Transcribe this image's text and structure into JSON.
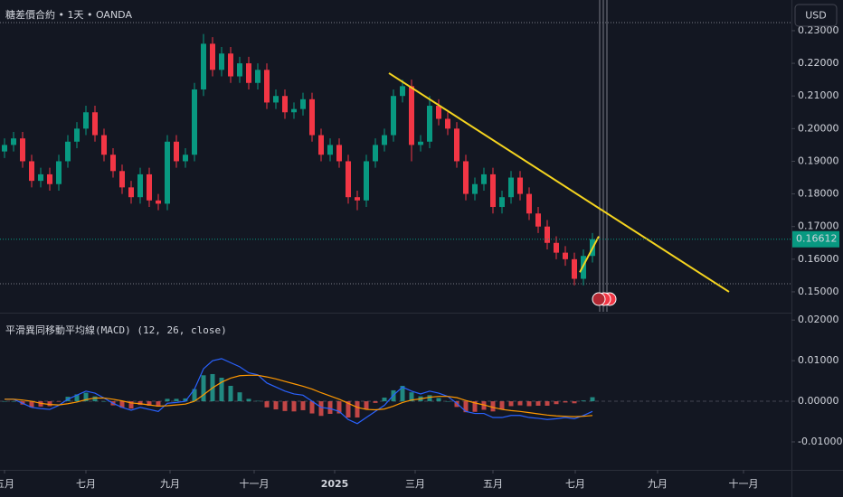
{
  "chart_data": [
    {
      "type": "candlestick",
      "title": "糖差價合約 • 1天 • OANDA",
      "currency": "USD",
      "last_price": 0.16612,
      "x": [
        0,
        1,
        2,
        3,
        4,
        5,
        6,
        7,
        8,
        9,
        10,
        11,
        12,
        13,
        14,
        15,
        16,
        17,
        18,
        19,
        20,
        21,
        22,
        23,
        24,
        25,
        26,
        27,
        28,
        29,
        30,
        31,
        32,
        33,
        34,
        35,
        36,
        37,
        38,
        39,
        40,
        41,
        42,
        43,
        44,
        45,
        46,
        47,
        48,
        49,
        50,
        51,
        52,
        53,
        54,
        55,
        56,
        57,
        58,
        59,
        60,
        61,
        62,
        63,
        64,
        65
      ],
      "open": [
        0.193,
        0.195,
        0.197,
        0.19,
        0.184,
        0.186,
        0.183,
        0.19,
        0.196,
        0.2,
        0.205,
        0.198,
        0.192,
        0.187,
        0.182,
        0.179,
        0.186,
        0.178,
        0.177,
        0.196,
        0.19,
        0.192,
        0.212,
        0.226,
        0.218,
        0.223,
        0.216,
        0.22,
        0.214,
        0.218,
        0.208,
        0.21,
        0.205,
        0.206,
        0.209,
        0.198,
        0.192,
        0.195,
        0.19,
        0.179,
        0.178,
        0.19,
        0.195,
        0.198,
        0.21,
        0.213,
        0.195,
        0.196,
        0.207,
        0.203,
        0.2,
        0.19,
        0.18,
        0.183,
        0.186,
        0.176,
        0.179,
        0.185,
        0.18,
        0.174,
        0.17,
        0.165,
        0.162,
        0.16,
        0.154,
        0.161
      ],
      "high": [
        0.197,
        0.199,
        0.199,
        0.192,
        0.188,
        0.188,
        0.192,
        0.198,
        0.202,
        0.207,
        0.207,
        0.2,
        0.194,
        0.189,
        0.184,
        0.188,
        0.188,
        0.18,
        0.198,
        0.198,
        0.194,
        0.214,
        0.229,
        0.228,
        0.225,
        0.225,
        0.222,
        0.222,
        0.22,
        0.22,
        0.212,
        0.212,
        0.208,
        0.211,
        0.211,
        0.2,
        0.197,
        0.197,
        0.192,
        0.181,
        0.192,
        0.197,
        0.2,
        0.212,
        0.215,
        0.215,
        0.198,
        0.21,
        0.209,
        0.205,
        0.202,
        0.192,
        0.185,
        0.188,
        0.188,
        0.181,
        0.187,
        0.187,
        0.182,
        0.176,
        0.172,
        0.167,
        0.164,
        0.162,
        0.163,
        0.168
      ],
      "low": [
        0.191,
        0.193,
        0.188,
        0.182,
        0.182,
        0.181,
        0.181,
        0.188,
        0.194,
        0.198,
        0.196,
        0.19,
        0.185,
        0.18,
        0.177,
        0.177,
        0.176,
        0.175,
        0.175,
        0.188,
        0.188,
        0.19,
        0.21,
        0.216,
        0.216,
        0.214,
        0.214,
        0.212,
        0.212,
        0.206,
        0.206,
        0.203,
        0.203,
        0.204,
        0.196,
        0.19,
        0.19,
        0.188,
        0.177,
        0.175,
        0.176,
        0.188,
        0.193,
        0.196,
        0.208,
        0.19,
        0.193,
        0.194,
        0.201,
        0.198,
        0.188,
        0.178,
        0.178,
        0.181,
        0.174,
        0.174,
        0.177,
        0.178,
        0.172,
        0.168,
        0.163,
        0.16,
        0.158,
        0.152,
        0.152,
        0.159
      ],
      "close": [
        0.195,
        0.197,
        0.19,
        0.184,
        0.186,
        0.183,
        0.19,
        0.196,
        0.2,
        0.205,
        0.198,
        0.192,
        0.187,
        0.182,
        0.179,
        0.186,
        0.178,
        0.177,
        0.196,
        0.19,
        0.192,
        0.212,
        0.226,
        0.218,
        0.223,
        0.216,
        0.22,
        0.214,
        0.218,
        0.208,
        0.21,
        0.205,
        0.206,
        0.209,
        0.198,
        0.192,
        0.195,
        0.19,
        0.179,
        0.178,
        0.19,
        0.195,
        0.198,
        0.21,
        0.213,
        0.195,
        0.196,
        0.207,
        0.203,
        0.2,
        0.19,
        0.18,
        0.183,
        0.186,
        0.176,
        0.179,
        0.185,
        0.18,
        0.174,
        0.17,
        0.165,
        0.162,
        0.16,
        0.154,
        0.161,
        0.16612
      ],
      "colors": {
        "up": "#089981",
        "down": "#f23645"
      },
      "xlim": [
        -0.5,
        87
      ],
      "xticks": [
        {
          "value": 0,
          "label": "五月"
        },
        {
          "value": 9,
          "label": "七月"
        },
        {
          "value": 18.3,
          "label": "九月"
        },
        {
          "value": 27.6,
          "label": "十一月"
        },
        {
          "value": 36.5,
          "label": "2025"
        },
        {
          "value": 45.4,
          "label": "三月"
        },
        {
          "value": 54,
          "label": "五月"
        },
        {
          "value": 63.1,
          "label": "七月"
        },
        {
          "value": 72.2,
          "label": "九月"
        },
        {
          "value": 81.7,
          "label": "十一月"
        }
      ],
      "ylim": [
        0.1439,
        0.2394
      ],
      "yticks": [
        {
          "value": 0.15,
          "label": "0.15000"
        },
        {
          "value": 0.16,
          "label": "0.16000"
        },
        {
          "value": 0.17,
          "label": "0.17000"
        },
        {
          "value": 0.18,
          "label": "0.18000"
        },
        {
          "value": 0.19,
          "label": "0.19000"
        },
        {
          "value": 0.2,
          "label": "0.20000"
        },
        {
          "value": 0.21,
          "label": "0.21000"
        },
        {
          "value": 0.22,
          "label": "0.22000"
        },
        {
          "value": 0.23,
          "label": "0.23000"
        }
      ],
      "trendlines": [
        {
          "x": [
            42.5,
            80.1
          ],
          "y": [
            0.217,
            0.15
          ],
          "color": "#f5d41f"
        },
        {
          "x": [
            63.6,
            65.7
          ],
          "y": [
            0.156,
            0.167
          ],
          "color": "#f5d41f"
        }
      ]
    },
    {
      "type": "macd",
      "title": "平滑異同移動平均線(MACD) (12, 26, close)",
      "x": [
        0,
        1,
        2,
        3,
        4,
        5,
        6,
        7,
        8,
        9,
        10,
        11,
        12,
        13,
        14,
        15,
        16,
        17,
        18,
        19,
        20,
        21,
        22,
        23,
        24,
        25,
        26,
        27,
        28,
        29,
        30,
        31,
        32,
        33,
        34,
        35,
        36,
        37,
        38,
        39,
        40,
        41,
        42,
        43,
        44,
        45,
        46,
        47,
        48,
        49,
        50,
        51,
        52,
        53,
        54,
        55,
        56,
        57,
        58,
        59,
        60,
        61,
        62,
        63,
        64,
        65
      ],
      "xlim": [
        -0.5,
        87
      ],
      "ylim": [
        -0.0169,
        0.0216
      ],
      "yticks": [
        {
          "value": -0.01,
          "label": "-0.01000"
        },
        {
          "value": 0,
          "label": "0.00000"
        },
        {
          "value": 0.01,
          "label": "0.01000"
        },
        {
          "value": 0.02,
          "label": "0.02000"
        }
      ],
      "series": [
        {
          "style": "histogram",
          "colors": {
            "up": "#26a69a",
            "down": "#ef5350"
          },
          "values": [
            0,
            0,
            -0.0008,
            -0.0015,
            -0.0013,
            -0.0012,
            -0.0001,
            0.0011,
            0.0017,
            0.0021,
            0.0012,
            0,
            -0.001,
            -0.0016,
            -0.0018,
            -0.0009,
            -0.0011,
            -0.0013,
            0.0006,
            0.0006,
            0.0007,
            0.003,
            0.0064,
            0.0067,
            0.0058,
            0.0038,
            0.0022,
            0.0006,
            0.0001,
            -0.0015,
            -0.002,
            -0.0024,
            -0.0025,
            -0.0022,
            -0.003,
            -0.0036,
            -0.0031,
            -0.003,
            -0.004,
            -0.004,
            -0.002,
            -0.0004,
            0.0009,
            0.0027,
            0.0038,
            0.0022,
            0.0012,
            0.0015,
            0.0008,
            0,
            -0.0014,
            -0.0027,
            -0.0026,
            -0.0021,
            -0.0025,
            -0.002,
            -0.0012,
            -0.001,
            -0.0012,
            -0.0011,
            -0.0011,
            -0.0007,
            -0.0003,
            -0.0005,
            0.0002,
            0.001
          ]
        },
        {
          "style": "line",
          "color": "#2962ff",
          "values": [
            0.0005,
            0.0005,
            -0.0005,
            -0.0015,
            -0.0018,
            -0.002,
            -0.001,
            0.0005,
            0.0015,
            0.0025,
            0.002,
            0.0008,
            -0.0005,
            -0.0015,
            -0.0022,
            -0.0015,
            -0.002,
            -0.0025,
            -0.0005,
            -0.0003,
            0,
            0.003,
            0.008,
            0.01,
            0.0105,
            0.0095,
            0.0085,
            0.007,
            0.0065,
            0.0045,
            0.0035,
            0.0025,
            0.0018,
            0.0015,
            0,
            -0.0015,
            -0.0018,
            -0.0025,
            -0.0045,
            -0.0055,
            -0.004,
            -0.0025,
            -0.001,
            0.0015,
            0.0035,
            0.0025,
            0.0018,
            0.0025,
            0.002,
            0.0012,
            -0.0005,
            -0.0025,
            -0.003,
            -0.003,
            -0.004,
            -0.004,
            -0.0035,
            -0.0035,
            -0.004,
            -0.0042,
            -0.0045,
            -0.0043,
            -0.004,
            -0.0043,
            -0.0035,
            -0.0025
          ]
        },
        {
          "style": "line",
          "color": "#ff9800",
          "values": [
            0.0005,
            0.0005,
            0.0003,
            0,
            -0.0005,
            -0.0008,
            -0.0009,
            -0.0006,
            -0.0002,
            0.0004,
            0.0008,
            0.0008,
            0.0005,
            0.0001,
            -0.0004,
            -0.0006,
            -0.0009,
            -0.0012,
            -0.0011,
            -0.0009,
            -0.0007,
            0,
            0.0016,
            0.0033,
            0.0047,
            0.0057,
            0.0063,
            0.0064,
            0.0064,
            0.006,
            0.0055,
            0.0049,
            0.0043,
            0.0037,
            0.003,
            0.0021,
            0.0013,
            0.0005,
            -0.0005,
            -0.0015,
            -0.002,
            -0.0021,
            -0.0019,
            -0.0012,
            -0.0003,
            0.0003,
            0.0006,
            0.001,
            0.0012,
            0.0012,
            0.0009,
            0.0002,
            -0.0004,
            -0.0009,
            -0.0015,
            -0.002,
            -0.0023,
            -0.0025,
            -0.0028,
            -0.0031,
            -0.0034,
            -0.0036,
            -0.0037,
            -0.0038,
            -0.0037,
            -0.0035
          ]
        }
      ]
    }
  ]
}
